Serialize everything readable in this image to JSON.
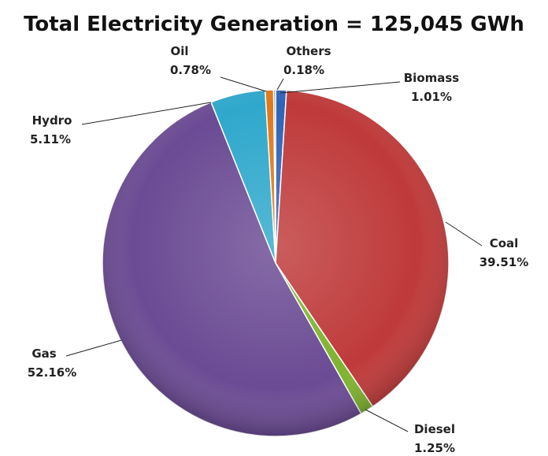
{
  "chart_data": {
    "type": "pie",
    "title": "Total Electricity Generation = 125,045 GWh",
    "unit": "%",
    "slices": [
      {
        "name": "Biomass",
        "value": 1.01,
        "label": "1.01%",
        "color": "#2f63b8"
      },
      {
        "name": "Coal",
        "value": 39.51,
        "label": "39.51%",
        "color": "#bf3a3a"
      },
      {
        "name": "Diesel",
        "value": 1.25,
        "label": "1.25%",
        "color": "#7fb32e"
      },
      {
        "name": "Gas",
        "value": 52.16,
        "label": "52.16%",
        "color": "#6b4b94"
      },
      {
        "name": "Hydro",
        "value": 5.11,
        "label": "5.11%",
        "color": "#2fa8cc"
      },
      {
        "name": "Oil",
        "value": 0.78,
        "label": "0.78%",
        "color": "#e0781c"
      },
      {
        "name": "Others",
        "value": 0.18,
        "label": "0.18%",
        "color": "#8a8a8a"
      }
    ],
    "legend": "none"
  }
}
